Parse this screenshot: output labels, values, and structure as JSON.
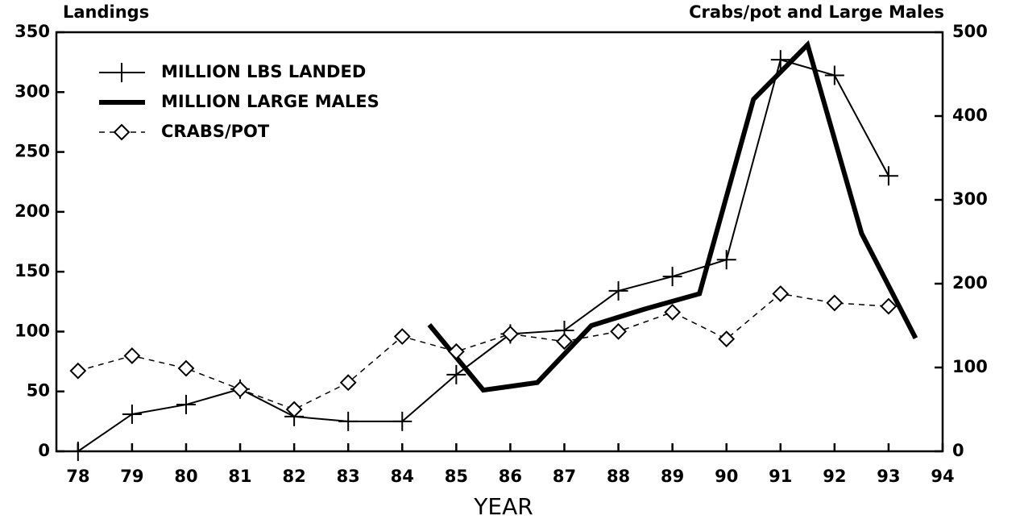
{
  "chart_data": {
    "type": "line",
    "axis_labels": {
      "y": "Landings",
      "y2": "Crabs/pot and Large Males",
      "x": "YEAR"
    },
    "xlim": [
      77.6,
      94
    ],
    "xticks": [
      78,
      79,
      80,
      81,
      82,
      83,
      84,
      85,
      86,
      87,
      88,
      89,
      90,
      91,
      92,
      93,
      94
    ],
    "ylim": [
      0,
      350
    ],
    "yticks": [
      0,
      50,
      100,
      150,
      200,
      250,
      300,
      350
    ],
    "y2lim": [
      0,
      500
    ],
    "y2ticks": [
      0,
      100,
      200,
      300,
      400,
      500
    ],
    "legend": "upper left",
    "series": [
      {
        "name": "MILLION LBS LANDED",
        "color": "#000000",
        "axis": "y",
        "x": [
          78,
          79,
          80,
          81,
          82,
          83,
          84,
          85,
          86,
          87,
          88,
          89,
          90,
          91,
          92,
          93
        ],
        "values": [
          0,
          31,
          39,
          52,
          29,
          25,
          25,
          64,
          98,
          101,
          134,
          146,
          160,
          327,
          314,
          230
        ]
      },
      {
        "name": "MILLION LARGE MALES",
        "color": "#000000",
        "axis": "y2",
        "x": [
          84.5,
          85.5,
          86.5,
          87.5,
          88.5,
          89.5,
          90.5,
          91.5,
          92.5,
          93.5
        ],
        "values": [
          151,
          73,
          82,
          150,
          170,
          188,
          420,
          485,
          260,
          135
        ]
      },
      {
        "name": "CRABS/POT",
        "color": "#000000",
        "axis": "y2",
        "x": [
          78,
          79,
          80,
          81,
          82,
          83,
          84,
          85,
          86,
          87,
          88,
          89,
          90,
          91,
          92,
          93
        ],
        "values": [
          96,
          114,
          99,
          74,
          50,
          82,
          137,
          119,
          140,
          131,
          143,
          166,
          134,
          188,
          177,
          173
        ]
      }
    ]
  }
}
